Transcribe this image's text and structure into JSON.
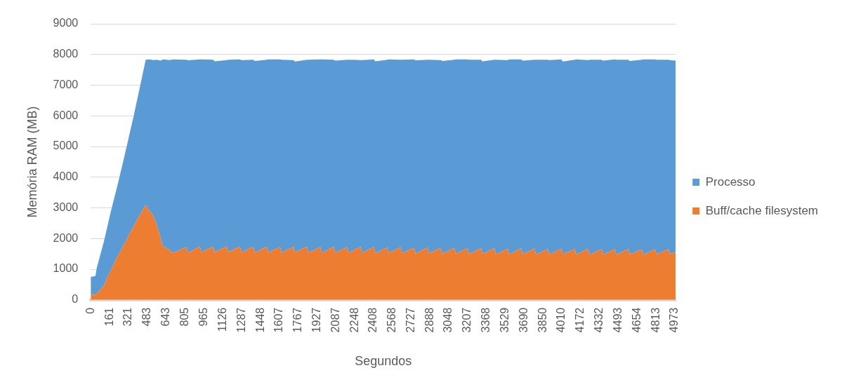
{
  "chart_data": {
    "type": "area",
    "xlabel": "Segundos",
    "ylabel": "Memória RAM (MB)",
    "x": [
      0,
      20,
      40,
      52,
      72,
      112,
      152,
      172,
      213,
      232,
      273,
      303,
      333,
      363,
      400,
      423,
      468,
      504,
      534,
      564,
      594,
      614,
      644,
      670,
      701,
      815,
      827,
      929,
      941,
      1043,
      1055,
      1157,
      1169,
      1271,
      1283,
      1385,
      1397,
      1499,
      1511,
      1613,
      1625,
      1727,
      1739,
      1841,
      1853,
      1955,
      1967,
      2069,
      2081,
      2183,
      2195,
      2297,
      2309,
      2411,
      2423,
      2525,
      2537,
      2639,
      2651,
      2753,
      2765,
      2867,
      2879,
      2981,
      2993,
      3095,
      3107,
      3209,
      3221,
      3323,
      3335,
      3437,
      3449,
      3551,
      3563,
      3665,
      3677,
      3779,
      3791,
      3893,
      3905,
      4007,
      4019,
      4121,
      4133,
      4235,
      4247,
      4349,
      4361,
      4463,
      4475,
      4577,
      4589,
      4691,
      4703,
      4805,
      4817,
      4919,
      4931,
      4980
    ],
    "xlim": [
      0,
      4980
    ],
    "xticks": [
      0,
      161,
      321,
      483,
      643,
      805,
      965,
      1126,
      1287,
      1448,
      1607,
      1767,
      1927,
      2087,
      2248,
      2408,
      2568,
      2727,
      2888,
      3048,
      3207,
      3368,
      3529,
      3690,
      3850,
      4010,
      4172,
      4332,
      4493,
      4654,
      4813,
      4973
    ],
    "ylim": [
      0,
      9000
    ],
    "yticks": [
      0,
      1000,
      2000,
      3000,
      4000,
      5000,
      6000,
      7000,
      8000,
      9000
    ],
    "stacked": true,
    "grid": "y",
    "legend": "right",
    "series": [
      {
        "name": "Buff/cache filesystem",
        "color": "#ed7d31",
        "values": [
          170,
          170,
          170,
          200,
          290,
          470,
          820,
          970,
          1300,
          1440,
          1730,
          1950,
          2170,
          2380,
          2640,
          2800,
          3100,
          2880,
          2730,
          2420,
          2040,
          1740,
          1700,
          1620,
          1530,
          1720,
          1540,
          1740,
          1560,
          1730,
          1550,
          1750,
          1560,
          1740,
          1550,
          1730,
          1540,
          1740,
          1550,
          1720,
          1540,
          1730,
          1550,
          1740,
          1540,
          1720,
          1530,
          1730,
          1540,
          1720,
          1530,
          1730,
          1540,
          1720,
          1520,
          1710,
          1530,
          1720,
          1520,
          1700,
          1510,
          1710,
          1520,
          1690,
          1500,
          1700,
          1510,
          1680,
          1490,
          1690,
          1500,
          1680,
          1490,
          1670,
          1480,
          1680,
          1490,
          1670,
          1480,
          1660,
          1480,
          1670,
          1490,
          1660,
          1480,
          1670,
          1470,
          1660,
          1480,
          1650,
          1470,
          1660,
          1480,
          1650,
          1470,
          1660,
          1480,
          1660,
          1490,
          1560
        ]
      },
      {
        "name": "Processo",
        "color": "#5b9bd5",
        "values": [
          580,
          590,
          610,
          850,
          1040,
          1430,
          1740,
          1920,
          2210,
          2360,
          2730,
          3000,
          3280,
          3570,
          3970,
          4220,
          4730,
          4960,
          5090,
          5410,
          5760,
          6100,
          6130,
          6200,
          6310,
          6110,
          6270,
          6100,
          6280,
          6100,
          6230,
          6070,
          6270,
          6100,
          6270,
          6100,
          6250,
          6090,
          6290,
          6120,
          6290,
          6090,
          6220,
          6090,
          6290,
          6120,
          6310,
          6100,
          6260,
          6110,
          6300,
          6090,
          6280,
          6120,
          6260,
          6120,
          6310,
          6110,
          6310,
          6140,
          6300,
          6120,
          6310,
          6130,
          6290,
          6130,
          6330,
          6160,
          6340,
          6140,
          6280,
          6150,
          6340,
          6150,
          6360,
          6160,
          6310,
          6160,
          6350,
          6170,
          6340,
          6170,
          6280,
          6170,
          6360,
          6150,
          6360,
          6170,
          6320,
          6190,
          6360,
          6170,
          6310,
          6180,
          6370,
          6180,
          6350,
          6170,
          6330,
          6240
        ]
      }
    ]
  }
}
